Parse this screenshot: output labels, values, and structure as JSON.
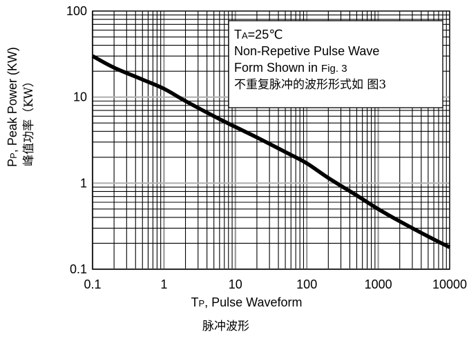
{
  "chart_data": {
    "type": "line",
    "x_scale": "log",
    "y_scale": "log",
    "xlim": [
      0.1,
      10000
    ],
    "ylim": [
      0.1,
      100
    ],
    "x_ticks": [
      "0.1",
      "1",
      "10",
      "100",
      "1000",
      "10000"
    ],
    "y_ticks": [
      "0.1",
      "1",
      "10",
      "100"
    ],
    "xlabel": {
      "main": "T",
      "sub": "P",
      "rest": ", Pulse Waveform"
    },
    "xlabel_cn": "脉冲波形",
    "ylabel": {
      "main": "P",
      "sub": "P",
      "rest": ", Peak Power  (KW)"
    },
    "ylabel_cn": "峰值功率（KW）",
    "grid": true,
    "series": [
      {
        "x": [
          0.1,
          0.2,
          0.5,
          1,
          2,
          5,
          10,
          20,
          50,
          100,
          200,
          500,
          1000,
          2000,
          5000,
          10000
        ],
        "y": [
          30,
          22,
          16,
          12.5,
          9,
          6,
          4.5,
          3.4,
          2.3,
          1.7,
          1.15,
          0.72,
          0.5,
          0.36,
          0.24,
          0.18
        ]
      }
    ],
    "annotation": {
      "line1_main": "T",
      "line1_sub": "A",
      "line1_rest": "=25℃",
      "line2": "Non-Repetive Pulse Wave",
      "line3_main": "Form Shown in ",
      "line3_small": "Fig. 3",
      "line4": "不重复脉冲的波形形式如 图3"
    },
    "colors": {
      "line": "#000000",
      "grid_major": "#000000",
      "grid_decade_x": "#9a9a9a",
      "grid_decade_y": "#b0b0b0",
      "background": "#ffffff"
    }
  }
}
